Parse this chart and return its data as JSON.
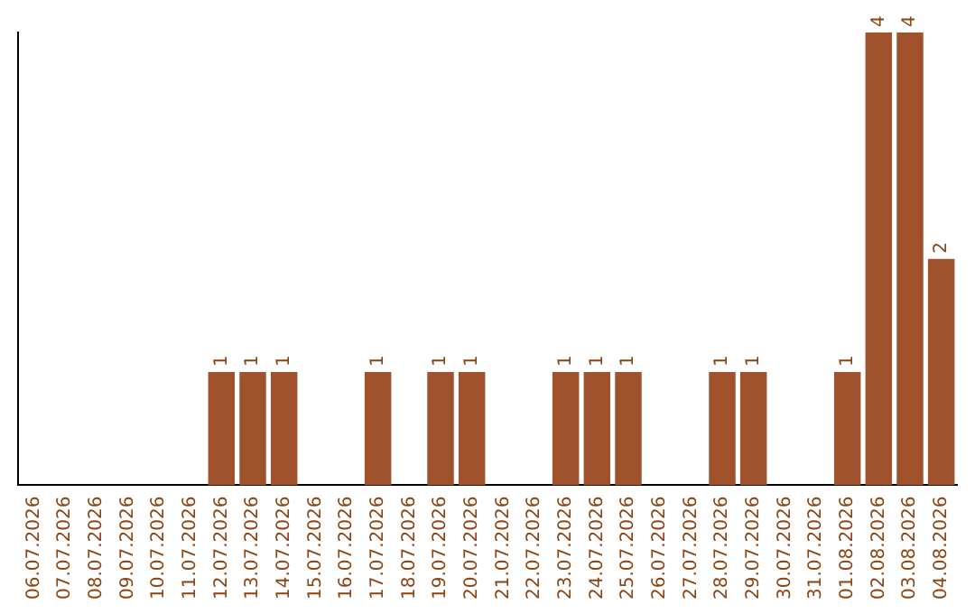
{
  "chart_data": {
    "type": "bar",
    "categories": [
      "06.07.2026",
      "07.07.2026",
      "08.07.2026",
      "09.07.2026",
      "10.07.2026",
      "11.07.2026",
      "12.07.2026",
      "13.07.2026",
      "14.07.2026",
      "15.07.2026",
      "16.07.2026",
      "17.07.2026",
      "18.07.2026",
      "19.07.2026",
      "20.07.2026",
      "21.07.2026",
      "22.07.2026",
      "23.07.2026",
      "24.07.2026",
      "25.07.2026",
      "26.07.2026",
      "27.07.2026",
      "28.07.2026",
      "29.07.2026",
      "30.07.2026",
      "31.07.2026",
      "01.08.2026",
      "02.08.2026",
      "03.08.2026",
      "04.08.2026"
    ],
    "values": [
      0,
      0,
      0,
      0,
      0,
      0,
      1,
      1,
      1,
      0,
      0,
      1,
      0,
      1,
      1,
      0,
      0,
      1,
      1,
      1,
      0,
      0,
      1,
      1,
      0,
      0,
      1,
      4,
      4,
      2
    ],
    "value_labels": [
      null,
      null,
      null,
      null,
      null,
      null,
      "1",
      "1",
      "1",
      null,
      null,
      "1",
      null,
      "1",
      "1",
      null,
      null,
      "1",
      "1",
      "1",
      null,
      null,
      "1",
      "1",
      null,
      null,
      "1",
      "4",
      "4",
      "2"
    ],
    "color": "#a0522d",
    "ylim": [
      0,
      4
    ],
    "tick_labels": "x",
    "grid": false,
    "legend": false
  }
}
